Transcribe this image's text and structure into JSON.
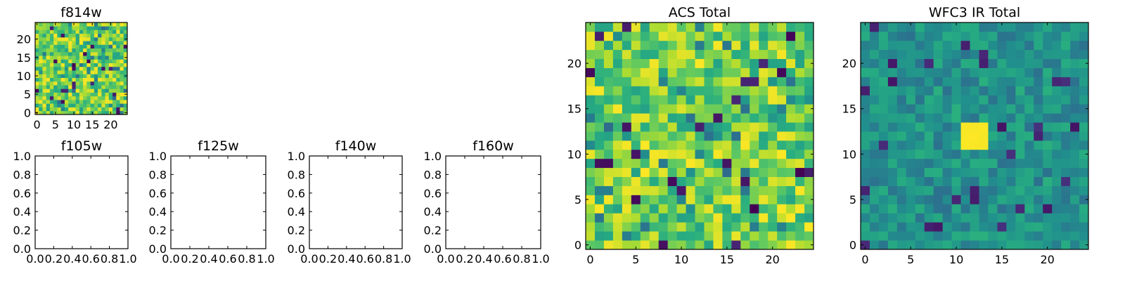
{
  "chart_data": [
    {
      "type": "heatmap",
      "id": "f814w",
      "title": "f814w",
      "grid_size": 25,
      "xticks": [
        0,
        5,
        10,
        15,
        20
      ],
      "yticks": [
        0,
        5,
        10,
        15,
        20
      ],
      "xlim": [
        -0.5,
        24.5
      ],
      "ylim": [
        -0.5,
        24.5
      ],
      "colormap": "viridis",
      "character": "uniform noise, mostly high values (green-yellow) with scattered low (dark purple) pixels"
    },
    {
      "type": "empty",
      "id": "f105w",
      "title": "f105w",
      "xticks": [
        "0.0",
        "0.2",
        "0.4",
        "0.6",
        "0.8",
        "1.0"
      ],
      "yticks": [
        "0.0",
        "0.2",
        "0.4",
        "0.6",
        "0.8",
        "1.0"
      ],
      "xlim": [
        0,
        1
      ],
      "ylim": [
        0,
        1
      ]
    },
    {
      "type": "empty",
      "id": "f125w",
      "title": "f125w",
      "xticks": [
        "0.0",
        "0.2",
        "0.4",
        "0.6",
        "0.8",
        "1.0"
      ],
      "yticks": [
        "0.0",
        "0.2",
        "0.4",
        "0.6",
        "0.8",
        "1.0"
      ],
      "xlim": [
        0,
        1
      ],
      "ylim": [
        0,
        1
      ]
    },
    {
      "type": "empty",
      "id": "f140w",
      "title": "f140w",
      "xticks": [
        "0.0",
        "0.2",
        "0.4",
        "0.6",
        "0.8",
        "1.0"
      ],
      "yticks": [
        "0.0",
        "0.2",
        "0.4",
        "0.6",
        "0.8",
        "1.0"
      ],
      "xlim": [
        0,
        1
      ],
      "ylim": [
        0,
        1
      ]
    },
    {
      "type": "empty",
      "id": "f160w",
      "title": "f160w",
      "xticks": [
        "0.0",
        "0.2",
        "0.4",
        "0.6",
        "0.8",
        "1.0"
      ],
      "yticks": [
        "0.0",
        "0.2",
        "0.4",
        "0.6",
        "0.8",
        "1.0"
      ],
      "xlim": [
        0,
        1
      ],
      "ylim": [
        0,
        1
      ]
    },
    {
      "type": "heatmap",
      "id": "acs-total",
      "title": "ACS Total",
      "grid_size": 25,
      "xticks": [
        0,
        5,
        10,
        15,
        20
      ],
      "yticks": [
        0,
        5,
        10,
        15,
        20
      ],
      "xlim": [
        -0.5,
        24.5
      ],
      "ylim": [
        -0.5,
        24.5
      ],
      "colormap": "viridis",
      "character": "uniform noise, mostly high values (green-yellow) with scattered low (dark purple) pixels"
    },
    {
      "type": "heatmap",
      "id": "wfc3-ir-total",
      "title": "WFC3 IR Total",
      "grid_size": 25,
      "xticks": [
        0,
        5,
        10,
        15,
        20
      ],
      "yticks": [
        0,
        5,
        10,
        15,
        20
      ],
      "xlim": [
        -0.5,
        24.5
      ],
      "ylim": [
        -0.5,
        24.5
      ],
      "colormap": "viridis",
      "character": "teal-dominated noise with a bright yellow source near the center",
      "bright_source": {
        "x": [
          11,
          13
        ],
        "y": [
          11,
          13
        ]
      }
    }
  ]
}
